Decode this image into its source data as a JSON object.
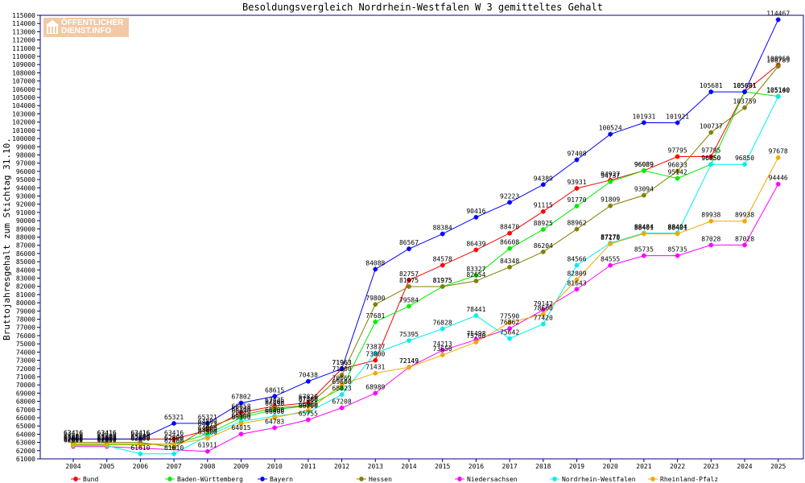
{
  "logo": {
    "line1": "ÖFFENTLICHER",
    "line2": "DIENST.INFO"
  },
  "chart_data": {
    "type": "line",
    "title": "Besoldungsvergleich Nordrhein-Westfalen W 3 gemitteltes Gehalt",
    "ylabel": "Bruttojahresgehalt zum Stichtag 31.10.",
    "xlabel": "",
    "ylim": [
      61000,
      115000
    ],
    "ystep": 1000,
    "grid": false,
    "legend": "bottom",
    "categories": [
      "2004",
      "2005",
      "2006",
      "2007",
      "2008",
      "2009",
      "2010",
      "2011",
      "2012",
      "2013",
      "2014",
      "2015",
      "2016",
      "2017",
      "2018",
      "2019",
      "2020",
      "2021",
      "2022",
      "2023",
      "2024",
      "2025"
    ],
    "series": [
      {
        "name": "Bund",
        "color": "#ff0000",
        "values": [
          63416,
          63416,
          63416,
          63416,
          64473,
          66658,
          67425,
          67820,
          71963,
          73000,
          82757,
          84578,
          86439,
          88470,
          91115,
          93931,
          94927,
          96089,
          97795,
          97795,
          105681,
          108969
        ]
      },
      {
        "name": "Baden-Württemberg",
        "color": "#00ee00",
        "values": [
          62800,
          62800,
          62800,
          62800,
          64000,
          66030,
          66990,
          67460,
          69600,
          77681,
          79584,
          81975,
          83327,
          86608,
          88925,
          91770,
          94737,
          96089,
          95142,
          96850,
          105681,
          105140
        ]
      },
      {
        "name": "Bayern",
        "color": "#0000ff",
        "values": [
          63416,
          63416,
          63416,
          65321,
          65321,
          67802,
          68615,
          70438,
          71963,
          84088,
          86567,
          88384,
          90416,
          92223,
          94389,
          97408,
          100524,
          101931,
          101921,
          105681,
          105681,
          114467
        ]
      },
      {
        "name": "Hessen",
        "color": "#808000",
        "values": [
          63000,
          63000,
          63000,
          62400,
          64800,
          66300,
          67200,
          67500,
          71200,
          79800,
          81975,
          81975,
          82654,
          84348,
          86204,
          88962,
          91809,
          93094,
          96033,
          100737,
          103759,
          108789
        ]
      },
      {
        "name": "Niedersachsen",
        "color": "#ff00ff",
        "values": [
          62500,
          62500,
          null,
          null,
          61911,
          64015,
          64783,
          65755,
          67208,
          68989,
          72149,
          74213,
          75498,
          76862,
          79142,
          81643,
          84555,
          85735,
          85735,
          87028,
          87028,
          94446
        ]
      },
      {
        "name": "Nordrhein-Westfalen",
        "color": "#00eeee",
        "values": [
          62600,
          62600,
          61610,
          61610,
          63800,
          65560,
          66200,
          66700,
          68823,
          73877,
          75395,
          76828,
          78441,
          75642,
          77420,
          84566,
          87278,
          88484,
          88494,
          96850,
          96850,
          105100
        ]
      },
      {
        "name": "Rheinland-Pfalz",
        "color": "#f0a800",
        "values": [
          62700,
          62700,
          62700,
          62800,
          63500,
          65300,
          66000,
          66900,
          70069,
          71431,
          72149,
          73650,
          75200,
          77590,
          78600,
          82809,
          87170,
          88401,
          88401,
          89938,
          89938,
          97678
        ]
      }
    ]
  }
}
